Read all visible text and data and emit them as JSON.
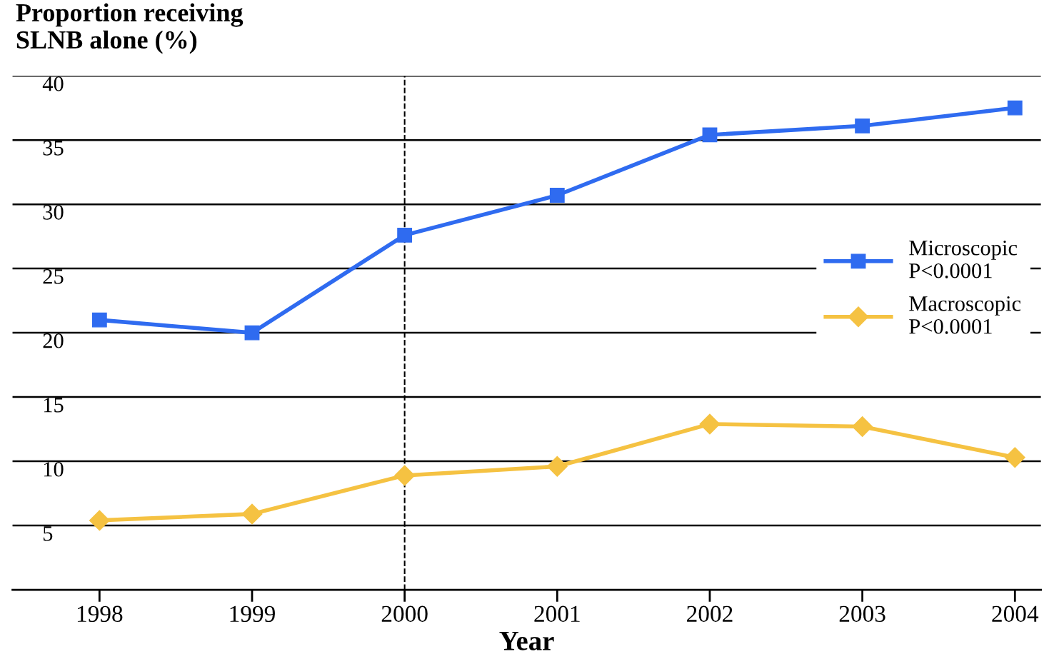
{
  "chart_data": {
    "type": "line",
    "title": "Proportion receiving\nSLNB alone (%)",
    "xlabel": "Year",
    "x": [
      1998,
      1999,
      2000,
      2001,
      2002,
      2003,
      2004
    ],
    "series": [
      {
        "name": "Microscopic\nP<0.0001",
        "color": "#2f6bf0",
        "marker": "square",
        "values": [
          21,
          20,
          27.6,
          30.7,
          35.4,
          36.1,
          37.5
        ]
      },
      {
        "name": "Macroscopic\nP<0.0001",
        "color": "#f5c242",
        "marker": "diamond",
        "values": [
          5.4,
          5.9,
          8.9,
          9.6,
          12.9,
          12.7,
          10.3
        ]
      }
    ],
    "xlim": [
      1997.43,
      2004.17
    ],
    "xticks": [
      1998,
      1999,
      2000,
      2001,
      2002,
      2003,
      2004
    ],
    "ylim": [
      0,
      40
    ],
    "yticks": [
      5,
      10,
      15,
      20,
      25,
      30,
      35,
      40
    ],
    "ref_lines": [
      {
        "axis": "x",
        "value": 2000,
        "line_style": "dashed",
        "color": "#000000"
      }
    ],
    "grid": "y",
    "legend": "right",
    "line_style": "solid"
  }
}
